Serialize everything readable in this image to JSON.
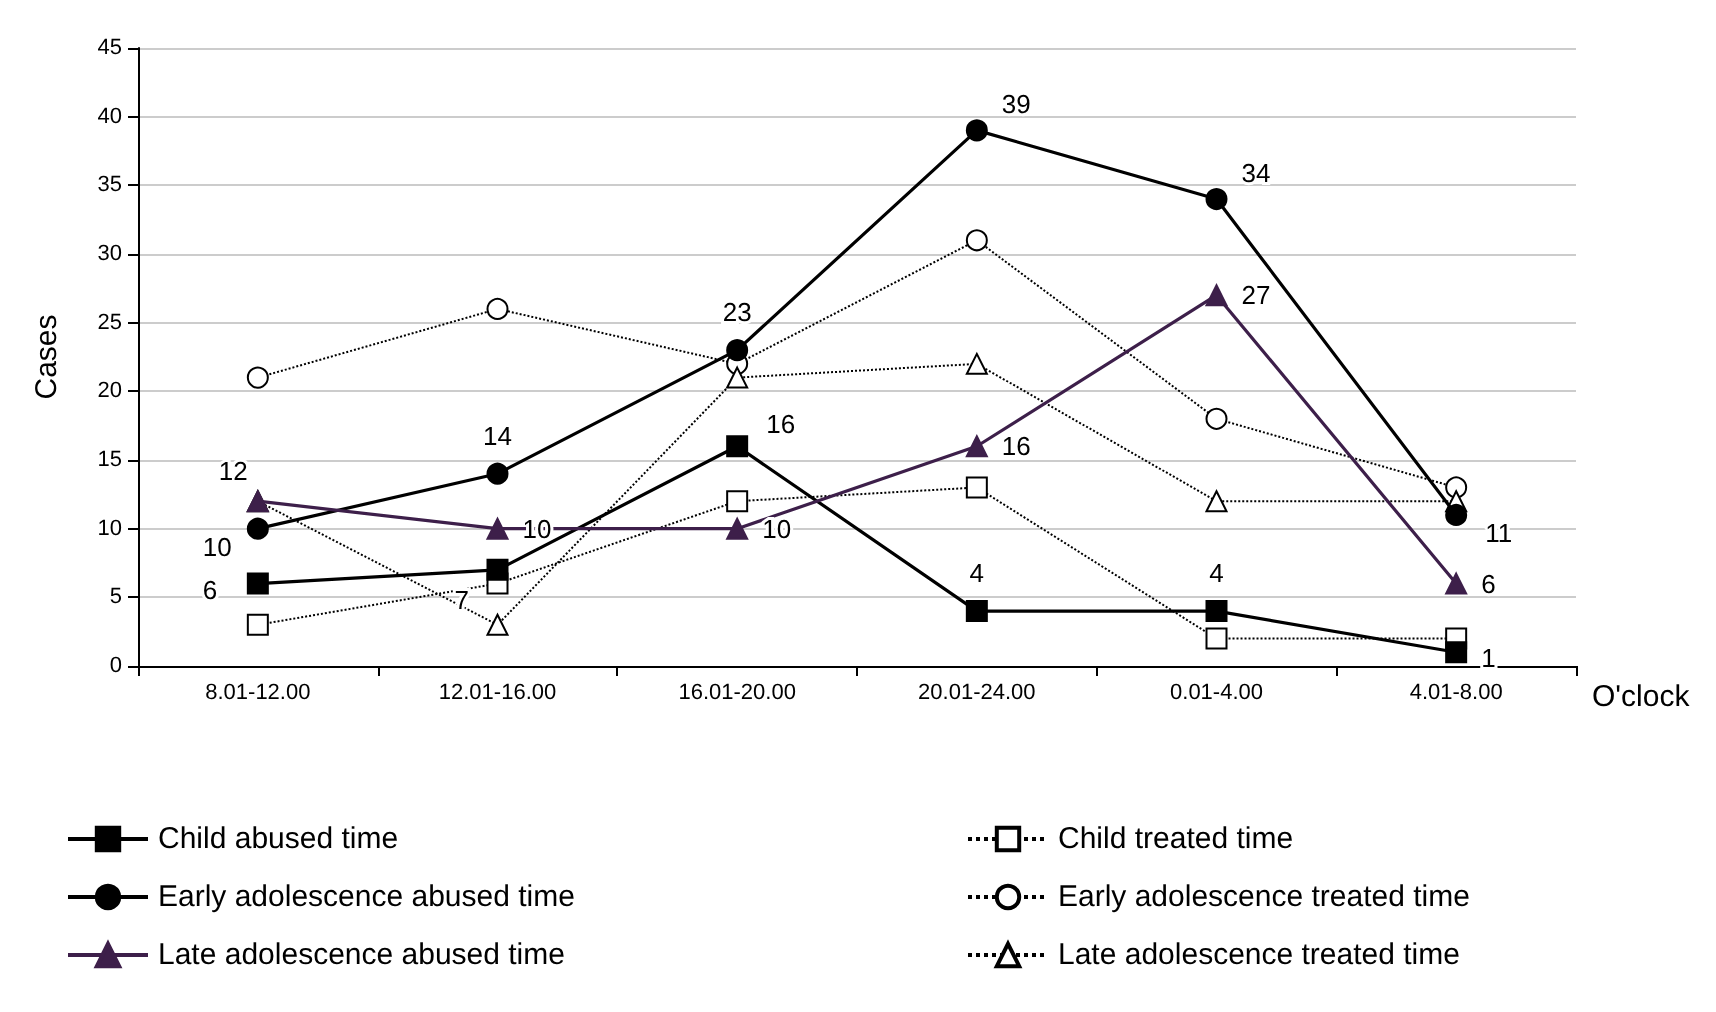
{
  "chart_data": {
    "type": "line",
    "xlabel": "O'clock",
    "ylabel": "Cases",
    "categories": [
      "8.01-12.00",
      "12.01-16.00",
      "16.01-20.00",
      "20.01-24.00",
      "0.01-4.00",
      "4.01-8.00"
    ],
    "ylim": [
      0,
      45
    ],
    "yticks": [
      0,
      5,
      10,
      15,
      20,
      25,
      30,
      35,
      40,
      45
    ],
    "grid": "y",
    "legend": "bottom",
    "series": [
      {
        "name": "Child abused time",
        "color": "#000000",
        "marker": "square",
        "line_style": "solid",
        "values": [
          6,
          7,
          16,
          4,
          4,
          1
        ],
        "value_labels": [
          "6",
          "7",
          "16",
          "4",
          "4",
          "1"
        ]
      },
      {
        "name": "Child treated time",
        "color": "#000000",
        "marker": "square",
        "line_style": "dotted",
        "values": [
          3,
          6,
          12,
          13,
          2,
          2
        ]
      },
      {
        "name": "Early adolescence abused time",
        "color": "#000000",
        "marker": "circle",
        "line_style": "solid",
        "values": [
          10,
          14,
          23,
          39,
          34,
          11
        ],
        "value_labels": [
          "10",
          "14",
          "23",
          "39",
          "34",
          "11"
        ]
      },
      {
        "name": "Early adolescence treated time",
        "color": "#000000",
        "marker": "circle",
        "line_style": "dotted",
        "values": [
          21,
          26,
          22,
          31,
          18,
          13
        ]
      },
      {
        "name": "Late adolescence abused time",
        "color": "#3d1f4a",
        "marker": "triangle",
        "line_style": "solid",
        "values": [
          12,
          10,
          10,
          16,
          27,
          6
        ],
        "value_labels": [
          "12",
          "10",
          "10",
          "16",
          "27",
          "6"
        ]
      },
      {
        "name": "Late adolescence treated time",
        "color": "#000000",
        "marker": "triangle",
        "line_style": "dotted",
        "values": [
          12,
          3,
          21,
          22,
          12,
          12
        ]
      }
    ]
  }
}
